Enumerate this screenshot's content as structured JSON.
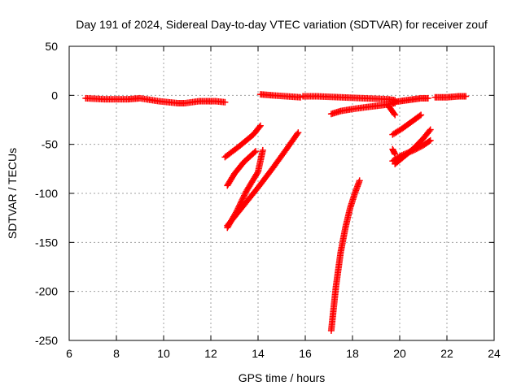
{
  "chart_data": {
    "type": "scatter",
    "title": "Day 191 of 2024, Sidereal Day-to-day VTEC variation (SDTVAR) for receiver zouf",
    "xlabel": "GPS time / hours",
    "ylabel": "SDTVAR / TECUs",
    "xlim": [
      6,
      24
    ],
    "ylim": [
      -250,
      50
    ],
    "xticks": [
      6,
      8,
      10,
      12,
      14,
      16,
      18,
      20,
      22,
      24
    ],
    "yticks": [
      -250,
      -200,
      -150,
      -100,
      -50,
      0,
      50
    ],
    "grid": true,
    "marker": "plus",
    "color": "#ff0000",
    "segments": [
      {
        "x": [
          6.7,
          7.5,
          8.5,
          9.0,
          9.8,
          10.6,
          10.9,
          11.5,
          12.2,
          12.6
        ],
        "y": [
          -3,
          -4,
          -4,
          -3,
          -6,
          -8,
          -8,
          -6,
          -6,
          -7
        ]
      },
      {
        "x": [
          12.6,
          13.2,
          13.8,
          14.1
        ],
        "y": [
          -63,
          -52,
          -40,
          -31
        ]
      },
      {
        "x": [
          12.7,
          13.0,
          13.4,
          13.9
        ],
        "y": [
          -92,
          -80,
          -68,
          -57
        ]
      },
      {
        "x": [
          12.7,
          13.1,
          13.5,
          14.0,
          14.2
        ],
        "y": [
          -135,
          -118,
          -98,
          -78,
          -56
        ]
      },
      {
        "x": [
          12.7,
          13.4,
          14.0,
          14.6,
          15.2,
          15.7
        ],
        "y": [
          -133,
          -112,
          -94,
          -75,
          -55,
          -38
        ]
      },
      {
        "x": [
          14.1,
          14.6,
          15.2,
          15.8
        ],
        "y": [
          1,
          0,
          -1,
          -2
        ]
      },
      {
        "x": [
          15.9,
          16.5,
          17.5,
          18.5,
          19.5,
          19.8
        ],
        "y": [
          -1,
          -1,
          -2,
          -3,
          -4,
          -5
        ]
      },
      {
        "x": [
          17.1,
          17.5,
          18.0,
          18.6,
          19.3,
          19.8
        ],
        "y": [
          -19,
          -16,
          -14,
          -12,
          -10,
          -8
        ]
      },
      {
        "x": [
          17.1,
          17.3,
          17.5,
          17.7,
          17.9,
          18.1,
          18.3
        ],
        "y": [
          -240,
          -195,
          -160,
          -135,
          -115,
          -100,
          -87
        ]
      },
      {
        "x": [
          19.5,
          19.8
        ],
        "y": [
          -10,
          -20
        ]
      },
      {
        "x": [
          19.7,
          20.0,
          20.3,
          20.6,
          20.9,
          21.2
        ],
        "y": [
          -7,
          -6,
          -5,
          -4,
          -3,
          -3
        ]
      },
      {
        "x": [
          19.7,
          20.1,
          20.5,
          20.9
        ],
        "y": [
          -40,
          -34,
          -27,
          -20
        ]
      },
      {
        "x": [
          19.8,
          20.2,
          20.6,
          21.0,
          21.3
        ],
        "y": [
          -70,
          -62,
          -54,
          -44,
          -35
        ]
      },
      {
        "x": [
          19.7,
          20.1,
          20.6,
          21.0,
          21.3
        ],
        "y": [
          -67,
          -61,
          -56,
          -51,
          -46
        ]
      },
      {
        "x": [
          19.7,
          19.8
        ],
        "y": [
          -55,
          -60
        ]
      },
      {
        "x": [
          21.5,
          22.0,
          22.5,
          22.8
        ],
        "y": [
          -2,
          -2,
          -1,
          -1
        ]
      }
    ]
  }
}
